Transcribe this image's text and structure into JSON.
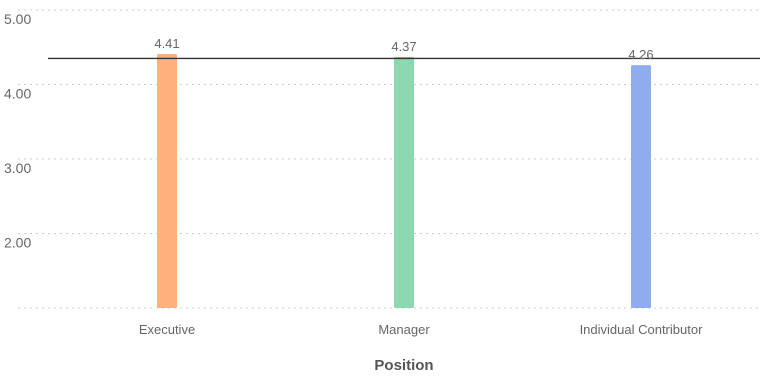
{
  "chart_data": {
    "type": "bar",
    "xlabel": "Position",
    "ylabel": "",
    "categories": [
      "Executive",
      "Manager",
      "Individual Contributor"
    ],
    "values": [
      4.41,
      4.37,
      4.26
    ],
    "value_labels": [
      "4.41",
      "4.37",
      "4.26"
    ],
    "colors": [
      "#FFB07C",
      "#8ED8B0",
      "#8FACEF"
    ],
    "ylim": [
      1.0,
      5.0
    ],
    "yticks": [
      2.0,
      3.0,
      4.0,
      5.0
    ],
    "ytick_labels": [
      "2.00",
      "3.00",
      "4.00",
      "5.00"
    ],
    "reference_line": 4.35,
    "grid": true,
    "legend": "none"
  }
}
